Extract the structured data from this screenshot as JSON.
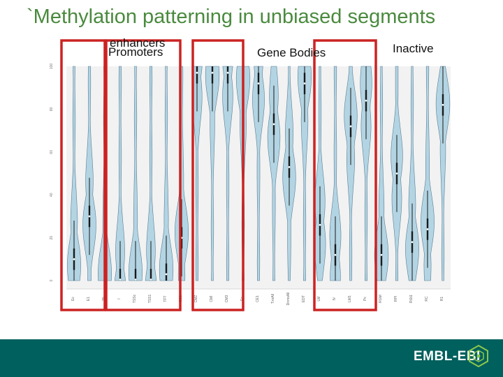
{
  "title": "`Methylation patterning in unbiased segments",
  "group_labels": {
    "enhancers": "enhancers",
    "promoters": "Promoters",
    "gene_bodies": "Gene Bodies",
    "inactive": "Inactive"
  },
  "footer": {
    "logo": "EMBL-EBI",
    "bg": "#00605d"
  },
  "colors": {
    "violin_fill": "#b3d4e3",
    "violin_stroke": "#5a7f95",
    "box": "#1a1a1a",
    "median": "#ffffff",
    "highlight": "#cc2222",
    "title": "#4a8a3e"
  },
  "chart_data": {
    "type": "violin",
    "ylim": [
      0,
      100
    ],
    "y_ticks": [
      "0",
      "20",
      "40",
      "60",
      "80",
      "100"
    ],
    "categories": [
      "Ec",
      "E1",
      "TF",
      "I",
      "TSSc",
      "TSS1",
      "TFT",
      "CS1",
      "CMZ",
      "CMI",
      "CM3",
      "Ec",
      "CE1",
      "TxnAll",
      "DnmsAll",
      "EDT",
      "LM",
      "IV",
      "LM1",
      "Pc",
      "RGM",
      "RPI",
      "Rt1t1",
      "RC",
      "R1"
    ],
    "medians": [
      10,
      30,
      0.5,
      0.5,
      0.5,
      0.5,
      3,
      20,
      97,
      97,
      97,
      92,
      92,
      73,
      53,
      92,
      26,
      12,
      72,
      84,
      12,
      50,
      18,
      24,
      82
    ]
  }
}
